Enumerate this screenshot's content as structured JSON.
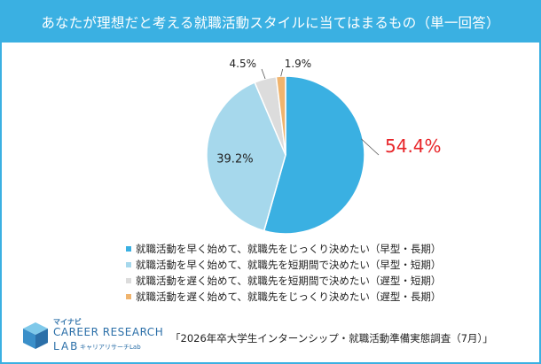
{
  "title": "あなたが理想だと考える就職活動スタイルに当てはまるもの（単一回答）",
  "chart_data": {
    "type": "pie",
    "title": "あなたが理想だと考える就職活動スタイルに当てはまるもの（単一回答）",
    "categories": [
      "就職活動を早く始めて、就職先をじっくり決めたい（早型・長期）",
      "就職活動を早く始めて、就職先を短期間で決めたい（早型・短期）",
      "就職活動を遅く始めて、就職先を短期間で決めたい（遅型・短期）",
      "就職活動を遅く始めて、就職先をじっくり決めたい（遅型・長期）"
    ],
    "values": [
      54.4,
      39.2,
      4.5,
      1.9
    ],
    "value_labels": [
      "54.4%",
      "39.2%",
      "4.5%",
      "1.9%"
    ],
    "colors": [
      "#3ab0e2",
      "#a6d8ec",
      "#dcdcdc",
      "#f0b46e"
    ],
    "highlight_color": "#e8262a",
    "legend_marker": "■"
  },
  "source": "「2026年卒大学生インターンシップ・就職活動準備実態調査（7月）」",
  "logo": {
    "brand": "マイナビ",
    "line1": "CAREER RESEARCH",
    "line2": "LAB",
    "sub": "キャリアリサーチLab"
  }
}
